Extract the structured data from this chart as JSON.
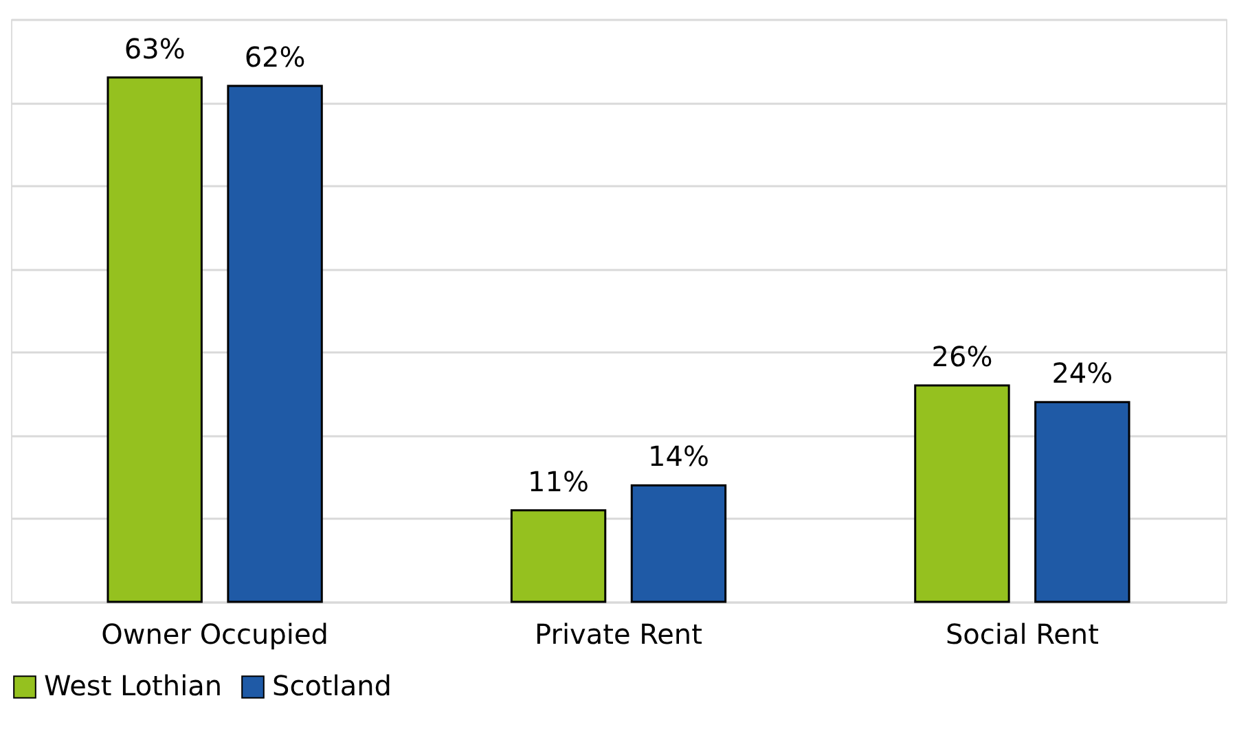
{
  "chart_data": {
    "type": "bar",
    "categories": [
      "Owner Occupied",
      "Private Rent",
      "Social Rent"
    ],
    "series": [
      {
        "name": "West Lothian",
        "color": "#95c11f",
        "values": [
          63,
          11,
          26
        ],
        "value_labels": [
          "63%",
          "11%",
          "26%"
        ]
      },
      {
        "name": "Scotland",
        "color": "#1f5aa6",
        "values": [
          62,
          14,
          24
        ],
        "value_labels": [
          "62%",
          "14%",
          "24%"
        ]
      }
    ],
    "ylim": [
      0,
      70
    ],
    "yticks": [
      {
        "value": 0,
        "label": null
      },
      {
        "value": 10,
        "label": null
      },
      {
        "value": 20,
        "label": null
      },
      {
        "value": 30,
        "label": null
      },
      {
        "value": 40,
        "label": null
      },
      {
        "value": 50,
        "label": null
      },
      {
        "value": 60,
        "label": null
      },
      {
        "value": 70,
        "label": null
      }
    ],
    "tick_labels": "x",
    "grid": "y",
    "legend": "bottom"
  }
}
